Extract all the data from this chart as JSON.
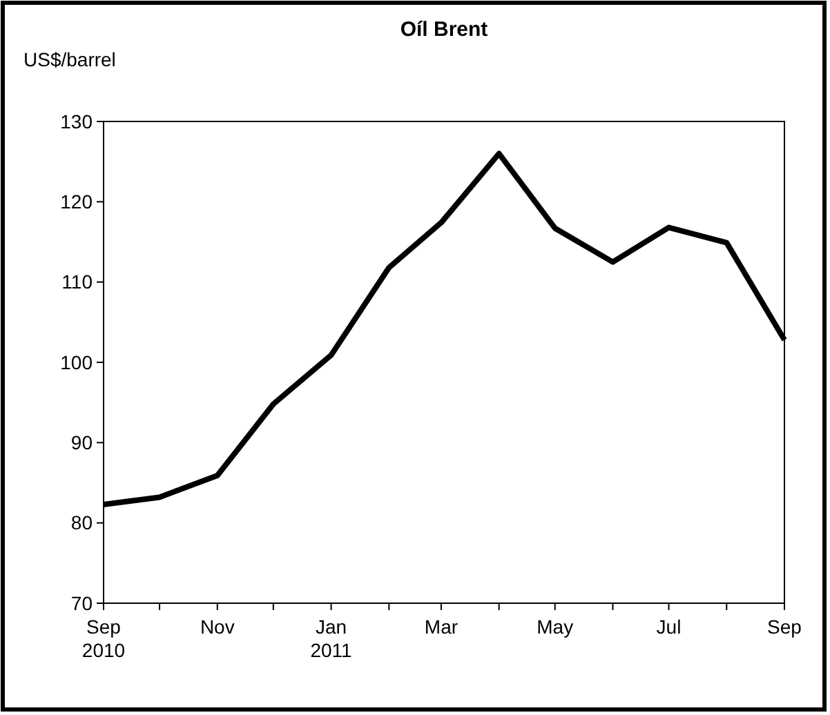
{
  "chart_data": {
    "type": "line",
    "title": "Oíl Brent",
    "ylabel": "US$/barrel",
    "x": [
      "2010-09",
      "2010-10",
      "2010-11",
      "2010-12",
      "2011-01",
      "2011-02",
      "2011-03",
      "2011-04",
      "2011-05",
      "2011-06",
      "2011-07",
      "2011-08",
      "2011-09"
    ],
    "series": [
      {
        "color": "#000000",
        "values": [
          82.3,
          83.2,
          85.9,
          94.8,
          100.9,
          111.8,
          117.4,
          126,
          116.7,
          112.5,
          116.8,
          114.9,
          102.8
        ]
      }
    ],
    "xlim": [
      "2010-09",
      "2011-09"
    ],
    "xticks": [
      {
        "value": "2010-09",
        "label": "Sep\n2010"
      },
      {
        "value": "2010-10",
        "label": null
      },
      {
        "value": "2010-11",
        "label": "Nov"
      },
      {
        "value": "2010-12",
        "label": null
      },
      {
        "value": "2011-01",
        "label": "Jan\n2011"
      },
      {
        "value": "2011-02",
        "label": null
      },
      {
        "value": "2011-03",
        "label": "Mar"
      },
      {
        "value": "2011-04",
        "label": null
      },
      {
        "value": "2011-05",
        "label": "May"
      },
      {
        "value": "2011-06",
        "label": null
      },
      {
        "value": "2011-07",
        "label": "Jul"
      },
      {
        "value": "2011-08",
        "label": null
      },
      {
        "value": "2011-09",
        "label": "Sep"
      }
    ],
    "ylim": [
      70,
      130
    ],
    "yticks": [
      70,
      80,
      90,
      100,
      110,
      120,
      130
    ],
    "grid": false,
    "marker": "none",
    "line_style": "solid"
  }
}
